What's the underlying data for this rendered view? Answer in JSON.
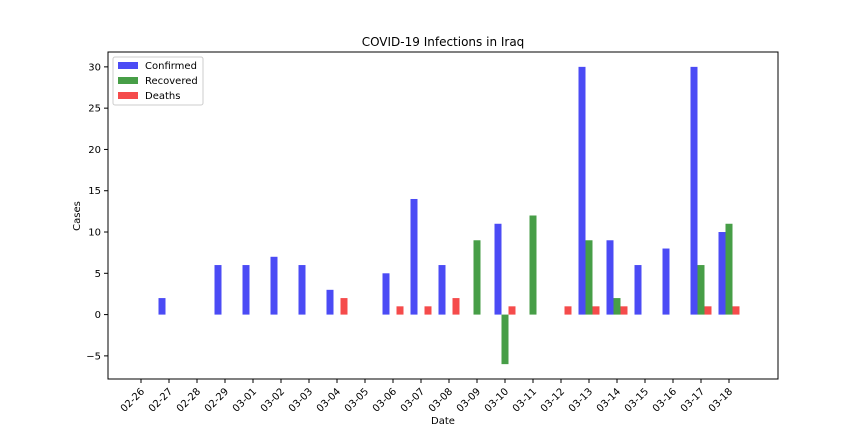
{
  "chart_data": {
    "type": "bar",
    "title": "COVID-19 Infections in Iraq",
    "xlabel": "Date",
    "ylabel": "Cases",
    "ylim": [
      -7.8,
      31.8
    ],
    "yticks": [
      -5,
      0,
      5,
      10,
      15,
      20,
      25,
      30
    ],
    "ytick_labels": [
      "−5",
      "0",
      "5",
      "10",
      "15",
      "20",
      "25",
      "30"
    ],
    "grid": false,
    "legend_position": "top-left",
    "categories": [
      "02-26",
      "02-27",
      "02-28",
      "02-29",
      "03-01",
      "03-02",
      "03-03",
      "03-04",
      "03-05",
      "03-06",
      "03-07",
      "03-08",
      "03-09",
      "03-10",
      "03-11",
      "03-12",
      "03-13",
      "03-14",
      "03-15",
      "03-16",
      "03-17",
      "03-18"
    ],
    "series": [
      {
        "name": "Confirmed",
        "color": "#4b4bf5",
        "values": [
          0,
          2,
          0,
          6,
          6,
          7,
          6,
          3,
          0,
          5,
          14,
          6,
          0,
          11,
          0,
          0,
          30,
          9,
          6,
          8,
          30,
          10
        ]
      },
      {
        "name": "Recovered",
        "color": "#479e47",
        "values": [
          0,
          0,
          0,
          0,
          0,
          0,
          0,
          0,
          0,
          0,
          0,
          0,
          9,
          -6,
          12,
          0,
          9,
          2,
          0,
          0,
          6,
          11
        ]
      },
      {
        "name": "Deaths",
        "color": "#f54b4b",
        "values": [
          0,
          0,
          0,
          0,
          0,
          0,
          0,
          2,
          0,
          1,
          1,
          2,
          0,
          1,
          0,
          1,
          1,
          1,
          0,
          0,
          1,
          1
        ]
      }
    ]
  }
}
